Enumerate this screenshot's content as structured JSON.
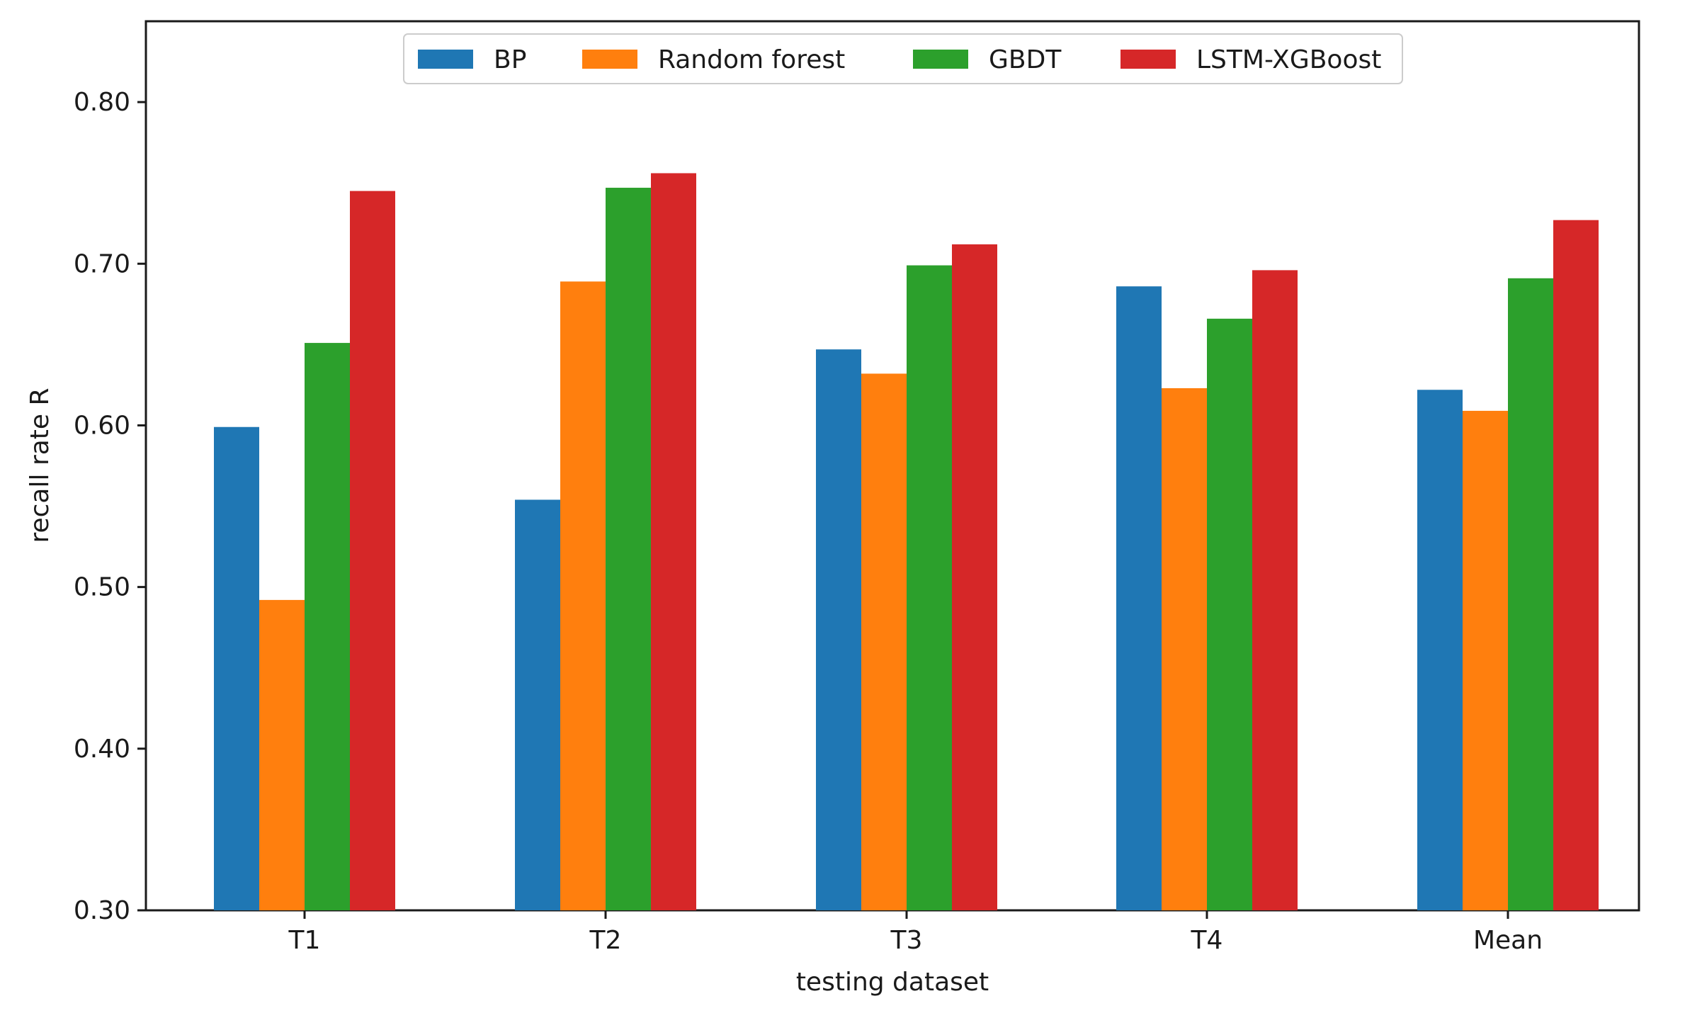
{
  "chart_data": {
    "type": "bar",
    "title": "",
    "xlabel": "testing dataset",
    "ylabel": "recall rate R",
    "ylim": [
      0.3,
      0.85
    ],
    "yticks": [
      0.3,
      0.4,
      0.5,
      0.6,
      0.7,
      0.8
    ],
    "ytick_labels": [
      "0.30",
      "0.40",
      "0.50",
      "0.60",
      "0.70",
      "0.80"
    ],
    "categories": [
      "T1",
      "T2",
      "T3",
      "T4",
      "Mean"
    ],
    "legend_position": "top-center",
    "grid": false,
    "series": [
      {
        "name": "BP",
        "color": "#1f77b4",
        "values": [
          0.599,
          0.554,
          0.647,
          0.686,
          0.622
        ]
      },
      {
        "name": "Random forest",
        "color": "#ff7f0e",
        "values": [
          0.492,
          0.689,
          0.632,
          0.623,
          0.609
        ]
      },
      {
        "name": "GBDT",
        "color": "#2ca02c",
        "values": [
          0.651,
          0.747,
          0.699,
          0.666,
          0.691
        ]
      },
      {
        "name": "LSTM-XGBoost",
        "color": "#d62728",
        "values": [
          0.745,
          0.756,
          0.712,
          0.696,
          0.727
        ]
      }
    ]
  }
}
